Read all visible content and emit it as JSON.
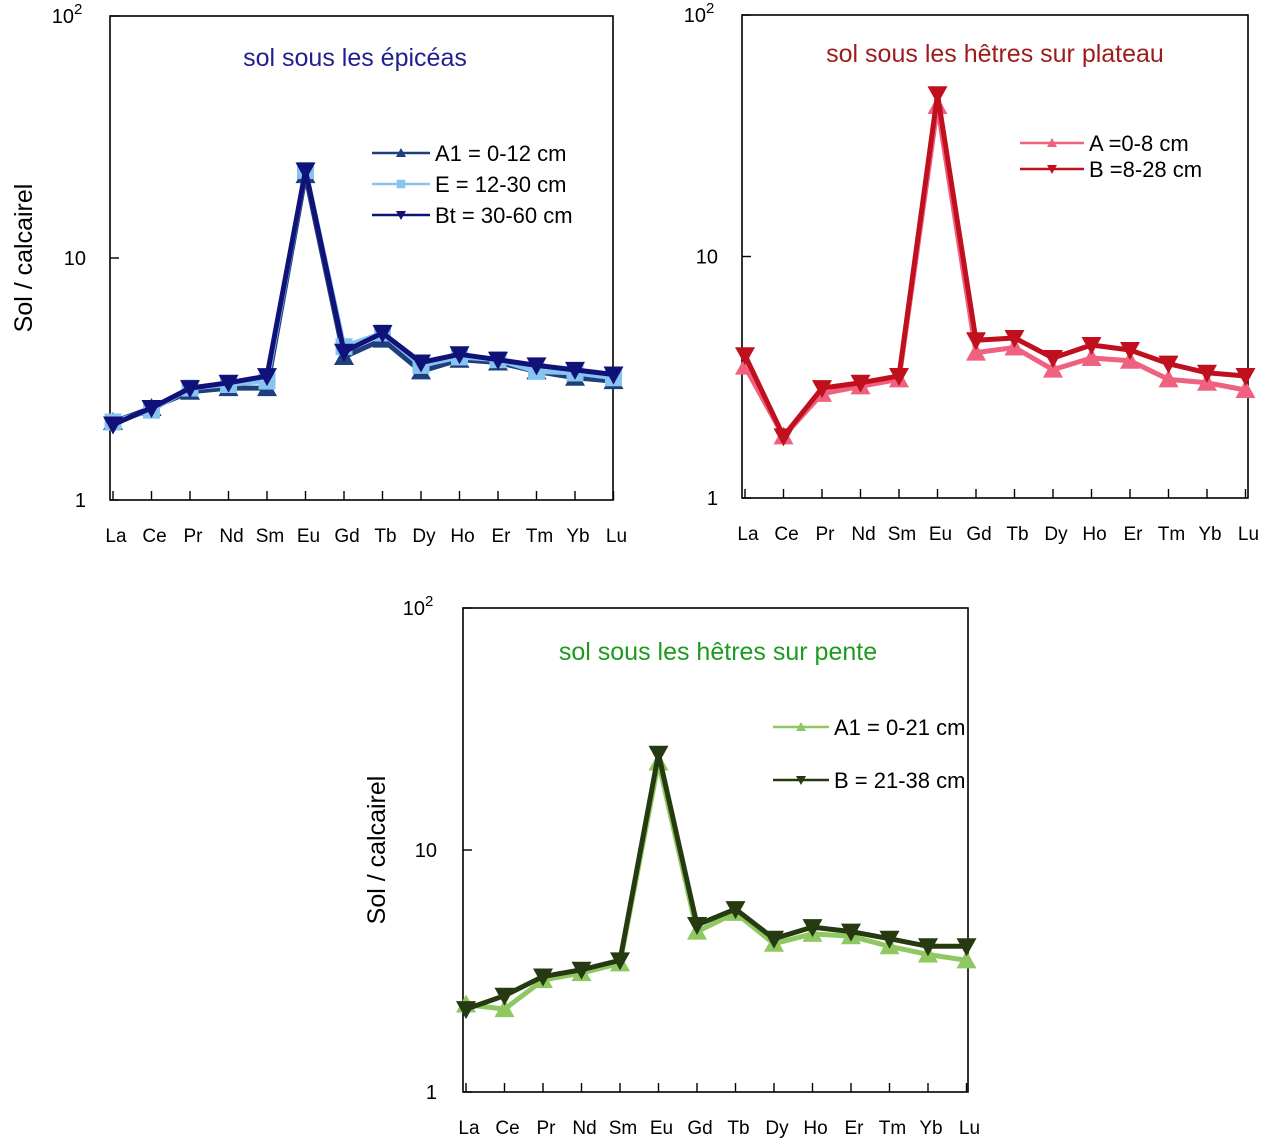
{
  "chart_data": [
    {
      "type": "line",
      "title": "sol sous les épicéas",
      "title_color": "#1f1f8f",
      "ylabel": "Sol / calcairel",
      "xlabel": "",
      "y_scale": "log",
      "ylim": [
        1,
        100
      ],
      "yticks": [
        {
          "value": 1,
          "base": "1",
          "exp": ""
        },
        {
          "value": 10,
          "base": "10",
          "exp": ""
        },
        {
          "value": 100,
          "base": "10",
          "exp": "2"
        }
      ],
      "categories": [
        "La",
        "Ce",
        "Pr",
        "Nd",
        "Sm",
        "Eu",
        "Gd",
        "Tb",
        "Dy",
        "Ho",
        "Er",
        "Tm",
        "Yb",
        "Lu"
      ],
      "legend_position": "upper-right",
      "series": [
        {
          "name": "A1 = 0-12 cm",
          "color": "#1f3f7a",
          "marker": "triangle-up",
          "values": [
            2.1,
            2.4,
            2.8,
            2.9,
            2.9,
            22,
            3.9,
            4.6,
            3.4,
            3.8,
            3.7,
            3.4,
            3.2,
            3.1
          ]
        },
        {
          "name": "E = 12-30 cm",
          "color": "#88c4f0",
          "marker": "square",
          "values": [
            2.1,
            2.35,
            2.9,
            3.0,
            3.1,
            23,
            4.3,
            4.9,
            3.6,
            3.9,
            3.8,
            3.4,
            3.35,
            3.2
          ]
        },
        {
          "name": "Bt = 30-60 cm",
          "color": "#10127a",
          "marker": "triangle-down",
          "values": [
            2.05,
            2.4,
            2.9,
            3.05,
            3.25,
            23,
            4.1,
            4.9,
            3.7,
            4.0,
            3.8,
            3.6,
            3.45,
            3.3
          ]
        }
      ]
    },
    {
      "type": "line",
      "title": "sol sous les hêtres sur plateau",
      "title_color": "#9e1b1b",
      "ylabel": "",
      "xlabel": "",
      "y_scale": "log",
      "ylim": [
        1,
        100
      ],
      "yticks": [
        {
          "value": 1,
          "base": "1",
          "exp": ""
        },
        {
          "value": 10,
          "base": "10",
          "exp": ""
        },
        {
          "value": 100,
          "base": "10",
          "exp": "2"
        }
      ],
      "categories": [
        "La",
        "Ce",
        "Pr",
        "Nd",
        "Sm",
        "Eu",
        "Gd",
        "Tb",
        "Dy",
        "Ho",
        "Er",
        "Tm",
        "Yb",
        "Lu"
      ],
      "legend_position": "upper-right",
      "series": [
        {
          "name": "A =0-8 cm",
          "color": "#f0607f",
          "marker": "triangle-up",
          "values": [
            3.5,
            1.8,
            2.7,
            2.9,
            3.1,
            42,
            4.0,
            4.2,
            3.4,
            3.8,
            3.7,
            3.1,
            3.0,
            2.8
          ]
        },
        {
          "name": "B =8-28 cm",
          "color": "#c0101e",
          "marker": "triangle-down",
          "values": [
            3.9,
            1.8,
            2.85,
            3.0,
            3.2,
            47,
            4.5,
            4.6,
            3.8,
            4.3,
            4.1,
            3.6,
            3.3,
            3.2
          ]
        }
      ]
    },
    {
      "type": "line",
      "title": "sol sous les hêtres sur pente",
      "title_color": "#1e9a1e",
      "ylabel": "Sol / calcairel",
      "xlabel": "",
      "y_scale": "log",
      "ylim": [
        1,
        100
      ],
      "yticks": [
        {
          "value": 1,
          "base": "1",
          "exp": ""
        },
        {
          "value": 10,
          "base": "10",
          "exp": ""
        },
        {
          "value": 100,
          "base": "10",
          "exp": "2"
        }
      ],
      "categories": [
        "La",
        "Ce",
        "Pr",
        "Nd",
        "Sm",
        "Eu",
        "Gd",
        "Tb",
        "Dy",
        "Ho",
        "Er",
        "Tm",
        "Yb",
        "Lu"
      ],
      "legend_position": "upper-right",
      "series": [
        {
          "name": "A1 = 0-21 cm",
          "color": "#8fc860",
          "marker": "triangle-up",
          "values": [
            2.3,
            2.2,
            2.9,
            3.1,
            3.4,
            23,
            4.6,
            5.5,
            4.1,
            4.5,
            4.4,
            4.0,
            3.7,
            3.5
          ]
        },
        {
          "name": "B = 21-38 cm",
          "color": "#253a10",
          "marker": "triangle-down",
          "values": [
            2.2,
            2.5,
            3.0,
            3.2,
            3.5,
            25,
            4.9,
            5.7,
            4.3,
            4.8,
            4.6,
            4.3,
            4.0,
            4.0
          ]
        }
      ]
    }
  ]
}
